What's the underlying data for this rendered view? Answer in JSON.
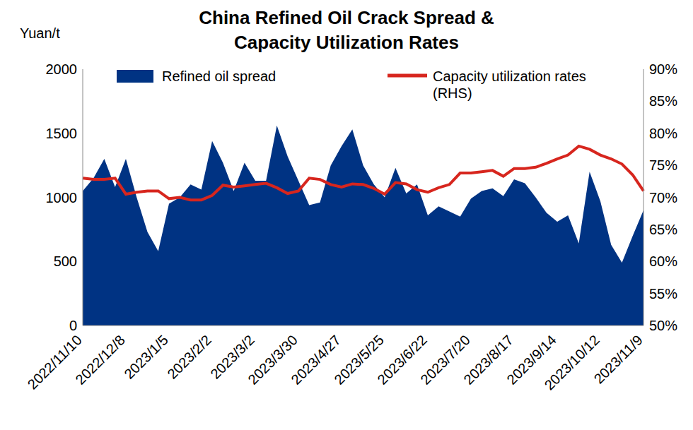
{
  "chart_data": {
    "type": "line",
    "title": "China Refined Oil Crack Spread & Capacity Utilization Rates",
    "ylabel": "Yuan/t",
    "categories": [
      "2022/11/10",
      null,
      null,
      null,
      "2022/12/8",
      null,
      null,
      null,
      "2023/1/5",
      null,
      null,
      null,
      "2023/2/2",
      null,
      null,
      null,
      "2023/3/2",
      null,
      null,
      null,
      "2023/3/30",
      null,
      null,
      null,
      "2023/4/27",
      null,
      null,
      null,
      "2023/5/25",
      null,
      null,
      null,
      "2023/6/22",
      null,
      null,
      null,
      "2023/7/20",
      null,
      null,
      null,
      "2023/8/17",
      null,
      null,
      null,
      "2023/9/14",
      null,
      null,
      null,
      "2023/10/12",
      null,
      null,
      null,
      "2023/11/9"
    ],
    "series": [
      {
        "name": "Refined oil spread",
        "type": "area",
        "color": "#003383",
        "values": [
          1050,
          1150,
          1300,
          1080,
          1300,
          1000,
          730,
          580,
          950,
          1000,
          1100,
          1060,
          1440,
          1270,
          1050,
          1270,
          1130,
          1130,
          1560,
          1320,
          1130,
          940,
          960,
          1250,
          1400,
          1530,
          1250,
          1100,
          1000,
          1230,
          1030,
          1100,
          860,
          930,
          890,
          850,
          990,
          1050,
          1070,
          1010,
          1140,
          1110,
          1000,
          880,
          810,
          860,
          640,
          1200,
          970,
          630,
          490,
          700,
          900
        ]
      },
      {
        "name": "Capacity utilization rates (RHS)",
        "type": "line",
        "axis": "y2",
        "color": "#d7261e",
        "values": [
          73.0,
          72.8,
          72.8,
          73.0,
          70.5,
          70.8,
          71.0,
          71.0,
          69.8,
          70.0,
          69.6,
          69.6,
          70.3,
          71.9,
          71.6,
          71.8,
          72.0,
          72.2,
          71.5,
          70.6,
          71.0,
          73.0,
          72.8,
          72.0,
          71.6,
          72.1,
          72.0,
          71.4,
          70.5,
          72.3,
          72.1,
          71.2,
          70.8,
          71.5,
          72.0,
          73.8,
          73.8,
          74.0,
          74.2,
          73.3,
          74.5,
          74.5,
          74.7,
          75.3,
          76.0,
          76.6,
          78.0,
          77.5,
          76.6,
          76.0,
          75.2,
          73.5,
          71.0
        ]
      }
    ],
    "ylim": [
      0,
      2000
    ],
    "yticks": [
      0,
      500,
      1000,
      1500,
      2000
    ],
    "y2lim": [
      50,
      90
    ],
    "y2ticks": [
      {
        "value": 50,
        "label": "50%"
      },
      {
        "value": 55,
        "label": "55%"
      },
      {
        "value": 60,
        "label": "60%"
      },
      {
        "value": 65,
        "label": "65%"
      },
      {
        "value": 70,
        "label": "70%"
      },
      {
        "value": 75,
        "label": "75%"
      },
      {
        "value": 80,
        "label": "80%"
      },
      {
        "value": 85,
        "label": "85%"
      },
      {
        "value": 90,
        "label": "90%"
      }
    ],
    "grid": false
  }
}
